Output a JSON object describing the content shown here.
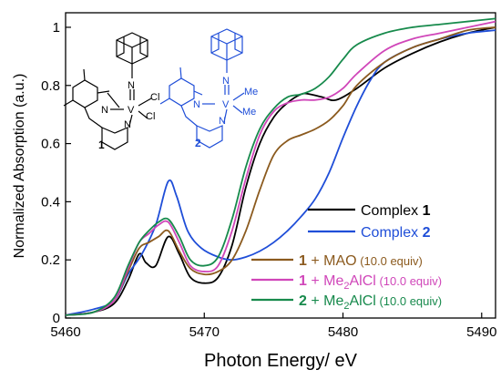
{
  "chart_data": {
    "type": "line",
    "xlabel": "Photon Energy/ eV",
    "ylabel": "Normalized Absorption (a.u.)",
    "xlim": [
      5460,
      5491
    ],
    "ylim": [
      0,
      1.05
    ],
    "x_ticks": [
      "5460",
      "5470",
      "5480",
      "5490"
    ],
    "y_ticks": [
      "0",
      "0.2",
      "0.4",
      "0.6",
      "0.8",
      "1"
    ],
    "legend_position": "bottom-right",
    "series": [
      {
        "name": "Complex 1",
        "color": "#000000",
        "x": [
          5460,
          5462,
          5463.5,
          5464.5,
          5465.3,
          5465.8,
          5466.5,
          5467.4,
          5468.2,
          5469,
          5470,
          5471,
          5472,
          5473,
          5474,
          5475,
          5476,
          5477,
          5477.6,
          5478.5,
          5479.5,
          5481,
          5483,
          5485,
          5487,
          5489,
          5491
        ],
        "y": [
          0.01,
          0.02,
          0.05,
          0.13,
          0.22,
          0.19,
          0.18,
          0.28,
          0.22,
          0.14,
          0.12,
          0.14,
          0.25,
          0.45,
          0.6,
          0.69,
          0.74,
          0.77,
          0.77,
          0.76,
          0.75,
          0.79,
          0.86,
          0.91,
          0.95,
          0.98,
          1.0
        ]
      },
      {
        "name": "Complex 2",
        "color": "#1f4ed8",
        "x": [
          5460,
          5462,
          5463.5,
          5464.5,
          5465.5,
          5466.5,
          5467.4,
          5468,
          5468.8,
          5469.8,
          5471,
          5472,
          5473,
          5474,
          5475,
          5476,
          5477,
          5478,
          5479,
          5480,
          5481,
          5482,
          5483,
          5485,
          5487,
          5489,
          5491
        ],
        "y": [
          0.01,
          0.03,
          0.06,
          0.15,
          0.22,
          0.32,
          0.47,
          0.42,
          0.3,
          0.24,
          0.21,
          0.2,
          0.21,
          0.23,
          0.26,
          0.3,
          0.35,
          0.41,
          0.5,
          0.62,
          0.73,
          0.82,
          0.88,
          0.93,
          0.96,
          0.98,
          0.99
        ]
      },
      {
        "name": "1 + MAO (10.0 equiv)",
        "color": "#8b5a1e",
        "x": [
          5460,
          5462,
          5463.5,
          5464.5,
          5465.3,
          5466,
          5466.7,
          5467.4,
          5468.2,
          5469,
          5470,
          5471,
          5472,
          5473,
          5474,
          5475,
          5476,
          5477,
          5478,
          5479,
          5480,
          5481,
          5483,
          5485,
          5487,
          5489,
          5491
        ],
        "y": [
          0.01,
          0.02,
          0.06,
          0.16,
          0.24,
          0.26,
          0.28,
          0.3,
          0.23,
          0.17,
          0.15,
          0.16,
          0.2,
          0.3,
          0.44,
          0.56,
          0.61,
          0.63,
          0.65,
          0.68,
          0.73,
          0.8,
          0.88,
          0.93,
          0.96,
          0.99,
          1.0
        ]
      },
      {
        "name": "1 + Me2AlCl (10.0 equiv)",
        "color": "#d046b9",
        "x": [
          5460,
          5462,
          5463.5,
          5464.5,
          5465.3,
          5466,
          5466.7,
          5467.4,
          5468.2,
          5469,
          5470,
          5471,
          5472,
          5473,
          5474,
          5475,
          5476,
          5477,
          5478,
          5479,
          5480,
          5481,
          5483,
          5485,
          5487,
          5489,
          5491
        ],
        "y": [
          0.01,
          0.02,
          0.06,
          0.17,
          0.26,
          0.29,
          0.32,
          0.33,
          0.26,
          0.18,
          0.16,
          0.18,
          0.3,
          0.48,
          0.63,
          0.71,
          0.74,
          0.75,
          0.75,
          0.76,
          0.79,
          0.84,
          0.92,
          0.96,
          0.98,
          1.0,
          1.02
        ]
      },
      {
        "name": "2 + Me2AlCl (10.0 equiv)",
        "color": "#178a4c",
        "x": [
          5460,
          5462,
          5463.5,
          5464.5,
          5465.3,
          5466,
          5466.7,
          5467.4,
          5468.2,
          5469,
          5470,
          5471,
          5472,
          5473,
          5474,
          5475,
          5476,
          5477,
          5478,
          5479,
          5480,
          5481,
          5483,
          5485,
          5487,
          5489,
          5491
        ],
        "y": [
          0.01,
          0.02,
          0.07,
          0.18,
          0.26,
          0.3,
          0.33,
          0.34,
          0.28,
          0.2,
          0.18,
          0.21,
          0.34,
          0.52,
          0.65,
          0.72,
          0.76,
          0.77,
          0.79,
          0.83,
          0.89,
          0.94,
          0.98,
          1.0,
          1.01,
          1.02,
          1.03
        ]
      }
    ]
  },
  "legend": [
    {
      "bold": "",
      "text": "Complex ",
      "bold_suffix": "1",
      "note": "",
      "color": "#000000",
      "text_color": "#000000"
    },
    {
      "bold": "",
      "text": "Complex ",
      "bold_suffix": "2",
      "note": "",
      "color": "#1f4ed8",
      "text_color": "#1f4ed8"
    },
    {
      "bold": "1",
      "text": " + MAO",
      "bold_suffix": "",
      "note": " (10.0 equiv)",
      "color": "#8b5a1e",
      "text_color": "#8b5a1e"
    },
    {
      "bold": "1",
      "text": " + Me",
      "sub": "2",
      "text2": "AlCl",
      "bold_suffix": "",
      "note": " (10.0 equiv)",
      "color": "#d046b9",
      "text_color": "#d046b9"
    },
    {
      "bold": "2",
      "text": " + Me",
      "sub": "2",
      "text2": "AlCl",
      "bold_suffix": "",
      "note": " (10.0 equiv)",
      "color": "#178a4c",
      "text_color": "#178a4c"
    }
  ],
  "structures": {
    "complex1": {
      "label": "1",
      "metal": "V",
      "n_imido": "N",
      "n_amido": "N",
      "n_pyridine": "N",
      "ligand_a": "Cl",
      "ligand_b": "Cl",
      "color": "#000000"
    },
    "complex2": {
      "label": "2",
      "metal": "V",
      "n_imido": "N",
      "n_amido": "N",
      "n_pyridine": "N",
      "ligand_a": "Me",
      "ligand_b": "Me",
      "color": "#1f4ed8"
    }
  }
}
